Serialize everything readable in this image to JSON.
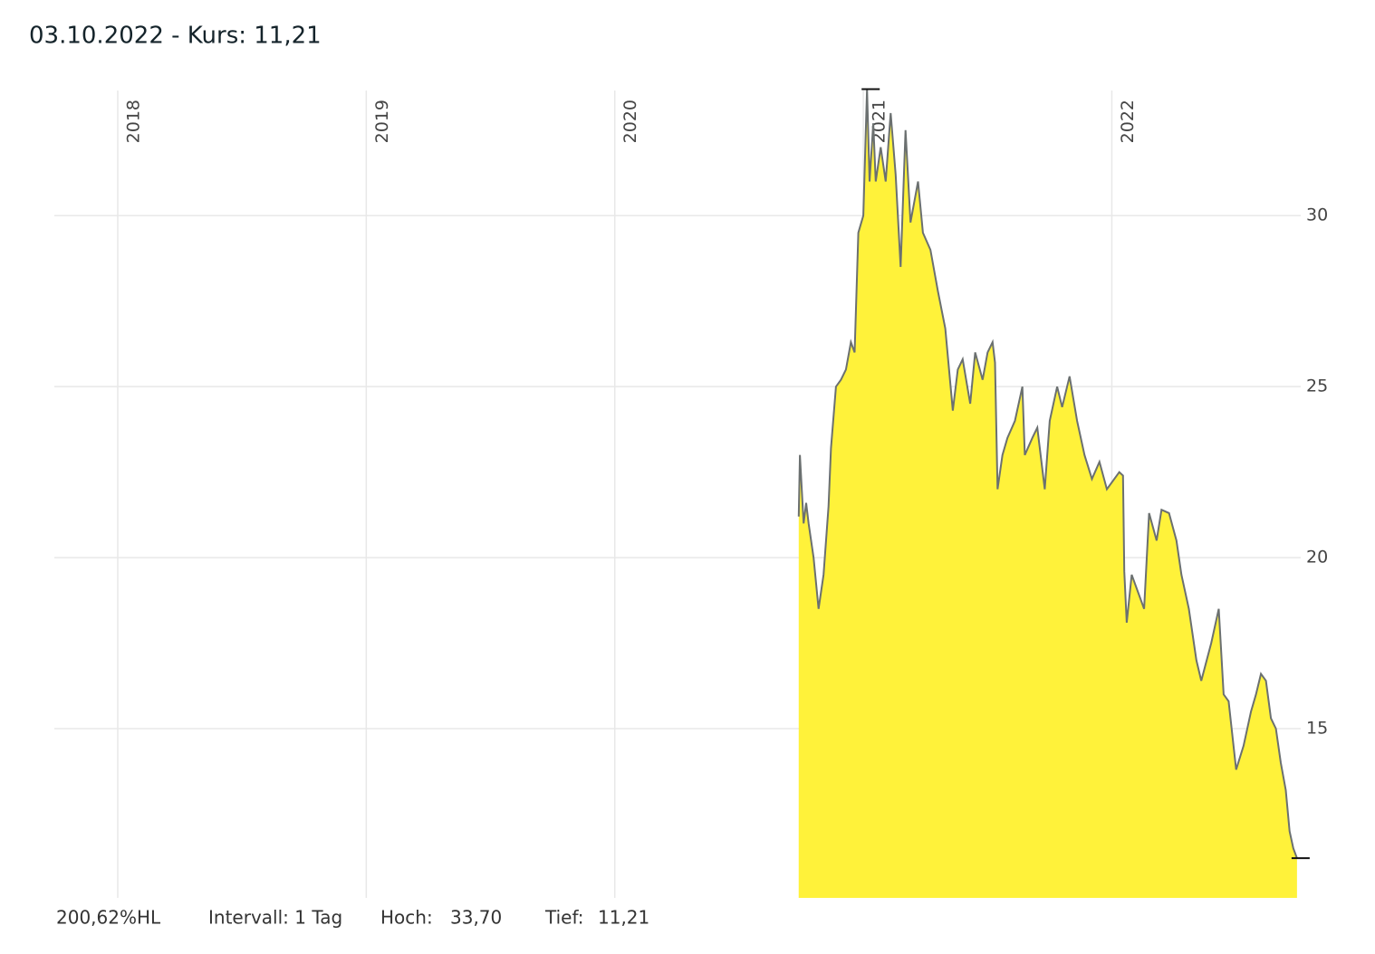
{
  "chart_data": {
    "type": "area",
    "title": "03.10.2022  -  Kurs: 11,21",
    "x": [
      2020.74,
      2020.745,
      2020.76,
      2020.77,
      2020.78,
      2020.8,
      2020.82,
      2020.84,
      2020.86,
      2020.87,
      2020.89,
      2020.91,
      2020.93,
      2020.95,
      2020.965,
      2020.98,
      2021.0,
      2021.015,
      2021.025,
      2021.04,
      2021.05,
      2021.07,
      2021.09,
      2021.11,
      2021.13,
      2021.15,
      2021.17,
      2021.19,
      2021.22,
      2021.24,
      2021.27,
      2021.3,
      2021.33,
      2021.36,
      2021.38,
      2021.4,
      2021.43,
      2021.45,
      2021.48,
      2021.5,
      2021.52,
      2021.53,
      2021.54,
      2021.56,
      2021.58,
      2021.61,
      2021.64,
      2021.65,
      2021.68,
      2021.7,
      2021.73,
      2021.75,
      2021.78,
      2021.8,
      2021.83,
      2021.86,
      2021.89,
      2021.92,
      2021.95,
      2021.98,
      2022.03,
      2022.045,
      2022.05,
      2022.06,
      2022.08,
      2022.13,
      2022.15,
      2022.18,
      2022.2,
      2022.23,
      2022.26,
      2022.28,
      2022.31,
      2022.34,
      2022.36,
      2022.4,
      2022.43,
      2022.45,
      2022.47,
      2022.5,
      2022.53,
      2022.56,
      2022.58,
      2022.6,
      2022.62,
      2022.64,
      2022.66,
      2022.68,
      2022.7,
      2022.715,
      2022.73,
      2022.745
    ],
    "values": [
      21.2,
      23.0,
      21.0,
      21.6,
      21.0,
      20.0,
      18.5,
      19.5,
      21.5,
      23.2,
      25.0,
      25.2,
      25.5,
      26.3,
      26.0,
      29.5,
      30.0,
      33.7,
      31.0,
      32.7,
      31.0,
      32.0,
      31.0,
      33.0,
      31.2,
      28.5,
      32.5,
      29.8,
      31.0,
      29.5,
      29.0,
      27.8,
      26.7,
      24.3,
      25.5,
      25.8,
      24.5,
      26.0,
      25.2,
      26.0,
      26.3,
      25.7,
      22.0,
      23.0,
      23.5,
      24.0,
      25.0,
      23.0,
      23.5,
      23.8,
      22.0,
      24.0,
      25.0,
      24.4,
      25.3,
      24.0,
      23.0,
      22.3,
      22.8,
      22.0,
      22.5,
      22.4,
      19.6,
      18.1,
      19.5,
      18.5,
      21.3,
      20.5,
      21.4,
      21.3,
      20.5,
      19.5,
      18.5,
      17.0,
      16.4,
      17.5,
      18.5,
      16.0,
      15.8,
      13.8,
      14.5,
      15.5,
      16.0,
      16.6,
      16.4,
      15.3,
      15.0,
      14.0,
      13.2,
      12.0,
      11.5,
      11.21
    ],
    "color": "#fff23a",
    "line_color": "#6b7070",
    "xlim": [
      2017.745,
      2022.76
    ],
    "xticks": [
      2018,
      2019,
      2020,
      2021,
      2022
    ],
    "ylim": [
      10.05,
      34.85
    ],
    "yticks": [
      15,
      20,
      25,
      30
    ],
    "grid": true,
    "footer": [
      "200,62%HL",
      "Intervall: 1 Tag"
    ],
    "stats": [
      {
        "label": "Hoch:",
        "value": "33,70"
      },
      {
        "label": "Tief:",
        "value": "11,21"
      }
    ]
  }
}
